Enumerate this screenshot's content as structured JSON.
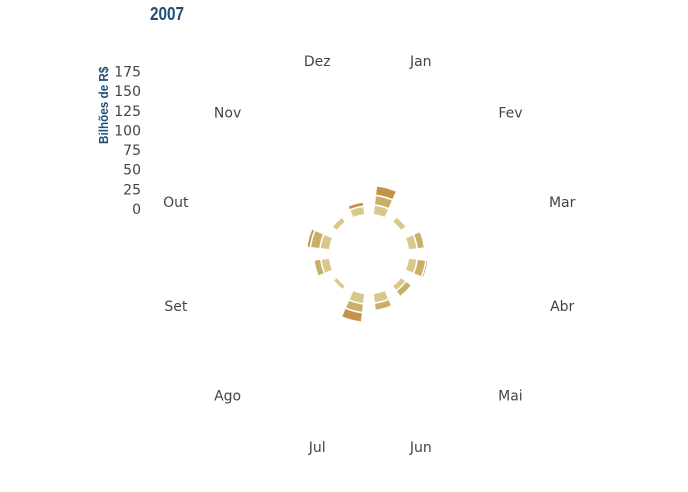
{
  "chart_data": {
    "type": "bar",
    "subtype": "polar-stacked-bar",
    "title": "2007",
    "ylabel": "Bilhões de R$",
    "ylim": [
      0,
      175
    ],
    "radial_ticks": [
      0,
      25,
      50,
      75,
      100,
      125,
      150,
      175
    ],
    "categories": [
      "Jan",
      "Fev",
      "Mar",
      "Abr",
      "Mai",
      "Jun",
      "Jul",
      "Ago",
      "Set",
      "Out",
      "Nov",
      "Dez"
    ],
    "series": [
      {
        "color": "#d8c88c",
        "values": [
          20,
          13,
          18,
          18,
          12,
          20,
          22,
          9,
          18,
          20,
          12,
          17
        ]
      },
      {
        "color": "#c9b066",
        "values": [
          22,
          0,
          17,
          20,
          16,
          17,
          20,
          0,
          16,
          22,
          0,
          0
        ]
      },
      {
        "color": "#c4934a",
        "values": [
          22,
          0,
          0,
          5,
          0,
          0,
          22,
          0,
          0,
          8,
          0,
          10
        ]
      }
    ],
    "grid": false,
    "legend": "none"
  }
}
